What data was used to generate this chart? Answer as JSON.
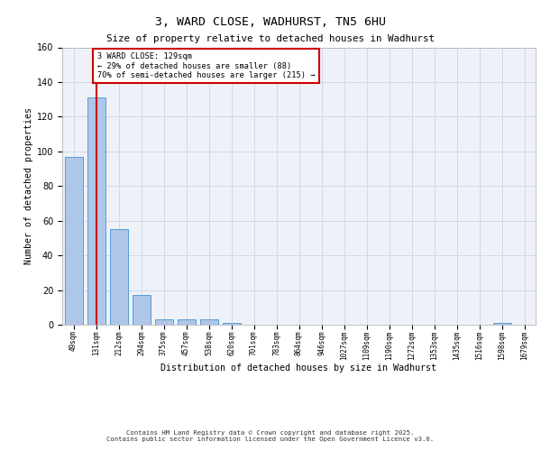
{
  "title_line1": "3, WARD CLOSE, WADHURST, TN5 6HU",
  "title_line2": "Size of property relative to detached houses in Wadhurst",
  "xlabel": "Distribution of detached houses by size in Wadhurst",
  "ylabel": "Number of detached properties",
  "categories": [
    "49sqm",
    "131sqm",
    "212sqm",
    "294sqm",
    "375sqm",
    "457sqm",
    "538sqm",
    "620sqm",
    "701sqm",
    "783sqm",
    "864sqm",
    "946sqm",
    "1027sqm",
    "1109sqm",
    "1190sqm",
    "1272sqm",
    "1353sqm",
    "1435sqm",
    "1516sqm",
    "1598sqm",
    "1679sqm"
  ],
  "values": [
    97,
    131,
    55,
    17,
    3,
    3,
    3,
    1,
    0,
    0,
    0,
    0,
    0,
    0,
    0,
    0,
    0,
    0,
    0,
    1,
    0
  ],
  "bar_color": "#aec6e8",
  "bar_edge_color": "#5b9bd5",
  "property_line_x": 1.0,
  "property_label": "3 WARD CLOSE: 129sqm",
  "annotation_line2": "← 29% of detached houses are smaller (88)",
  "annotation_line3": "70% of semi-detached houses are larger (215) →",
  "annotation_box_color": "#ffffff",
  "annotation_box_edge": "#cc0000",
  "line_color": "#cc0000",
  "grid_color": "#d0d8e8",
  "background_color": "#eef2f8",
  "ylim": [
    0,
    160
  ],
  "yticks": [
    0,
    20,
    40,
    60,
    80,
    100,
    120,
    140,
    160
  ],
  "footer_line1": "Contains HM Land Registry data © Crown copyright and database right 2025.",
  "footer_line2": "Contains public sector information licensed under the Open Government Licence v3.0."
}
